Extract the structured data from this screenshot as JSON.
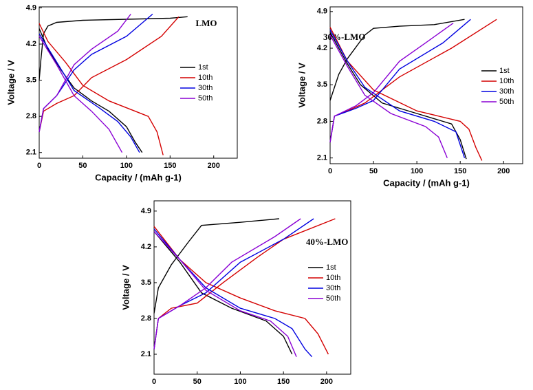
{
  "chart_data": [
    {
      "type": "line",
      "title": "LMO",
      "x_label": "Capacity / (mAh g-1)",
      "y_label": "Voltage / V",
      "xlim": [
        0,
        227
      ],
      "ylim": [
        1.99,
        4.92
      ],
      "xticks": [
        0,
        50,
        100,
        150,
        200
      ],
      "yticks": [
        2.1,
        2.8,
        3.5,
        4.2,
        4.9
      ],
      "series": [
        {
          "name": "1st",
          "color": "#000000",
          "x": [
            0,
            2,
            5,
            10,
            20,
            50,
            100,
            150,
            170,
            null,
            0,
            10,
            25,
            40,
            60,
            80,
            100,
            110,
            118
          ],
          "values": [
            3.5,
            3.9,
            4.4,
            4.55,
            4.62,
            4.66,
            4.68,
            4.7,
            4.73,
            null,
            4.5,
            4.1,
            3.7,
            3.35,
            3.1,
            2.9,
            2.6,
            2.3,
            2.1
          ]
        },
        {
          "name": "10th",
          "color": "#d40000",
          "x": [
            0,
            5,
            20,
            40,
            60,
            100,
            140,
            160,
            null,
            0,
            10,
            30,
            50,
            80,
            110,
            125,
            135,
            142
          ],
          "values": [
            2.5,
            2.9,
            3.05,
            3.2,
            3.55,
            3.9,
            4.35,
            4.73,
            null,
            4.6,
            4.25,
            3.85,
            3.4,
            3.1,
            2.9,
            2.8,
            2.5,
            2.05
          ]
        },
        {
          "name": "30th",
          "color": "#0000e0",
          "x": [
            0,
            5,
            20,
            40,
            60,
            100,
            130,
            null,
            0,
            20,
            40,
            70,
            90,
            105,
            115
          ],
          "values": [
            2.5,
            2.95,
            3.2,
            3.7,
            4.0,
            4.35,
            4.78,
            null,
            4.4,
            3.85,
            3.3,
            2.95,
            2.7,
            2.4,
            2.1
          ]
        },
        {
          "name": "50th",
          "color": "#8a00d4",
          "x": [
            0,
            5,
            20,
            40,
            60,
            90,
            105,
            null,
            0,
            20,
            40,
            60,
            80,
            95
          ],
          "values": [
            2.5,
            2.95,
            3.2,
            3.8,
            4.1,
            4.45,
            4.78,
            null,
            4.35,
            3.8,
            3.2,
            2.9,
            2.55,
            2.1
          ]
        }
      ]
    },
    {
      "type": "line",
      "title": "30%-LMO",
      "x_label": "Capacity / (mAh g-1)",
      "y_label": "Voltage / V",
      "xlim": [
        0,
        222
      ],
      "ylim": [
        1.99,
        4.99
      ],
      "xticks": [
        0,
        50,
        100,
        150,
        200
      ],
      "yticks": [
        2.1,
        2.8,
        3.5,
        4.2,
        4.9
      ],
      "series": [
        {
          "name": "1st",
          "color": "#000000",
          "x": [
            0,
            10,
            20,
            40,
            50,
            80,
            120,
            155,
            null,
            0,
            20,
            35,
            60,
            100,
            140,
            150,
            157
          ],
          "values": [
            3.2,
            3.7,
            4.0,
            4.45,
            4.58,
            4.62,
            4.65,
            4.75,
            null,
            4.5,
            3.9,
            3.5,
            3.15,
            2.95,
            2.75,
            2.45,
            2.08
          ]
        },
        {
          "name": "10th",
          "color": "#d40000",
          "x": [
            0,
            5,
            20,
            40,
            80,
            140,
            192,
            null,
            0,
            20,
            50,
            100,
            150,
            160,
            168,
            175
          ],
          "values": [
            2.4,
            2.9,
            3.0,
            3.15,
            3.65,
            4.2,
            4.75,
            null,
            4.6,
            3.95,
            3.4,
            3.0,
            2.8,
            2.65,
            2.3,
            2.05
          ]
        },
        {
          "name": "30th",
          "color": "#0000e0",
          "x": [
            0,
            5,
            30,
            50,
            80,
            130,
            162,
            null,
            0,
            20,
            40,
            80,
            120,
            145,
            155
          ],
          "values": [
            2.4,
            2.9,
            3.05,
            3.2,
            3.8,
            4.3,
            4.75,
            null,
            4.55,
            3.95,
            3.45,
            3.0,
            2.8,
            2.6,
            2.1
          ]
        },
        {
          "name": "50th",
          "color": "#8a00d4",
          "x": [
            0,
            5,
            30,
            50,
            80,
            110,
            142,
            null,
            0,
            20,
            40,
            70,
            110,
            125,
            135
          ],
          "values": [
            2.4,
            2.9,
            3.1,
            3.35,
            3.95,
            4.3,
            4.68,
            null,
            4.45,
            3.85,
            3.3,
            2.95,
            2.7,
            2.5,
            2.1
          ]
        }
      ]
    },
    {
      "type": "line",
      "title": "40%-LMO",
      "x_label": "Capacity / mAh g-1",
      "y_label": "Voltage / V",
      "xlim": [
        0,
        228
      ],
      "ylim": [
        1.71,
        5.1
      ],
      "xticks": [
        0,
        50,
        100,
        150,
        200
      ],
      "yticks": [
        2.1,
        2.8,
        3.5,
        4.2,
        4.9
      ],
      "series": [
        {
          "name": "1st",
          "color": "#000000",
          "x": [
            0,
            5,
            20,
            40,
            55,
            100,
            145,
            null,
            0,
            30,
            55,
            90,
            130,
            150,
            160
          ],
          "values": [
            2.9,
            3.4,
            3.85,
            4.3,
            4.62,
            4.68,
            4.75,
            null,
            4.5,
            3.9,
            3.3,
            3.0,
            2.75,
            2.45,
            2.1
          ]
        },
        {
          "name": "10th",
          "color": "#d40000",
          "x": [
            0,
            5,
            20,
            50,
            80,
            120,
            150,
            210,
            null,
            0,
            30,
            60,
            100,
            140,
            175,
            190,
            202
          ],
          "values": [
            2.2,
            2.8,
            3.0,
            3.1,
            3.5,
            4.0,
            4.35,
            4.75,
            null,
            4.6,
            3.95,
            3.5,
            3.2,
            2.95,
            2.8,
            2.5,
            2.1
          ]
        },
        {
          "name": "30th",
          "color": "#0000e0",
          "x": [
            0,
            5,
            30,
            60,
            100,
            150,
            185,
            null,
            0,
            30,
            60,
            100,
            140,
            160,
            175,
            183
          ],
          "values": [
            2.2,
            2.8,
            3.05,
            3.3,
            3.9,
            4.35,
            4.75,
            null,
            4.55,
            3.95,
            3.4,
            3.0,
            2.8,
            2.6,
            2.2,
            2.05
          ]
        },
        {
          "name": "50th",
          "color": "#8a00d4",
          "x": [
            0,
            5,
            30,
            60,
            90,
            140,
            170,
            null,
            0,
            30,
            60,
            100,
            135,
            155,
            165
          ],
          "values": [
            2.2,
            2.8,
            3.05,
            3.4,
            3.9,
            4.4,
            4.75,
            null,
            4.5,
            3.95,
            3.35,
            2.95,
            2.75,
            2.45,
            2.05
          ]
        }
      ]
    }
  ]
}
